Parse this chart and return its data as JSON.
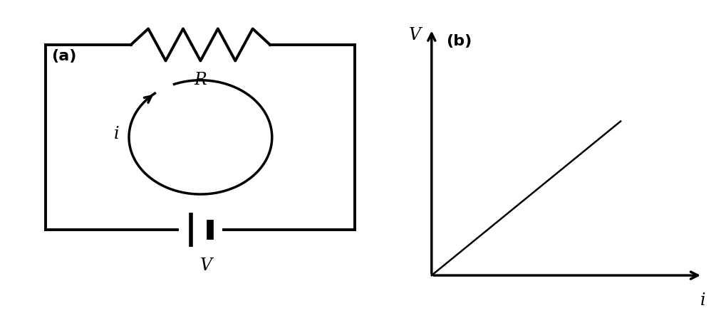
{
  "bg_color": "#ffffff",
  "text_color": "#000000",
  "line_color": "#000000",
  "fig_width": 10.05,
  "fig_height": 4.71,
  "label_a": "(a)",
  "label_b": "(b)",
  "label_R": "R",
  "label_i_circuit": "i",
  "label_V_battery": "V",
  "label_V_axis": "V",
  "label_i_axis": "i",
  "circuit_lw": 2.8,
  "axis_lw": 2.5
}
